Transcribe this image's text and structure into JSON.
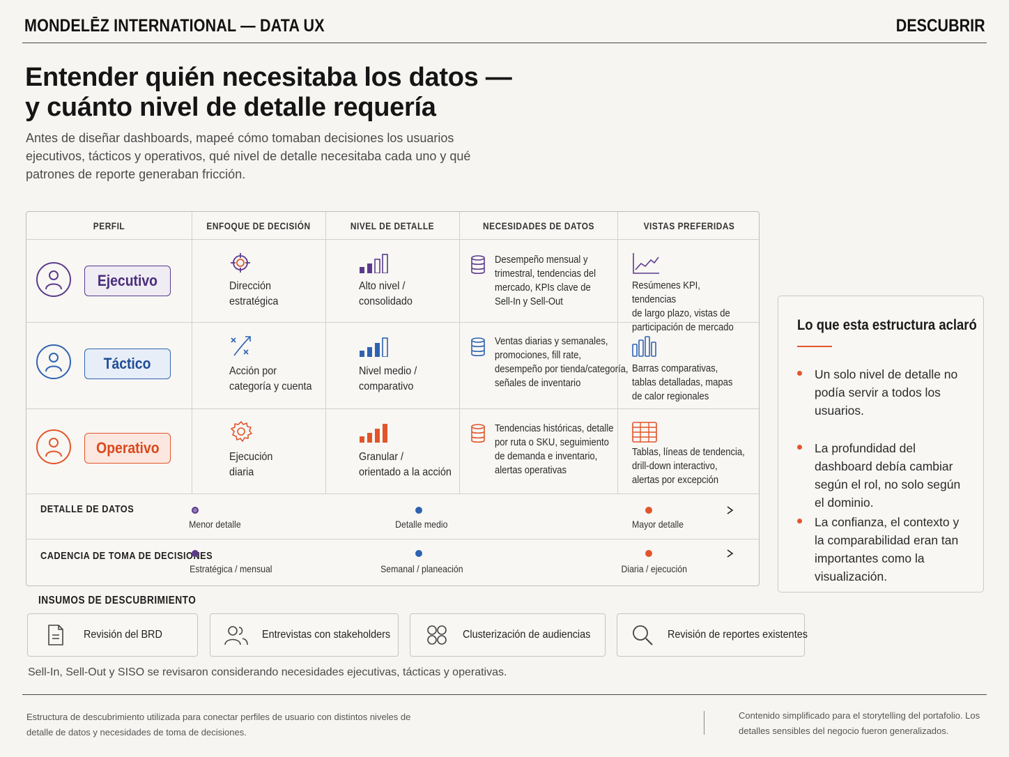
{
  "header": {
    "brand": "MONDELĒZ INTERNATIONAL — DATA UX",
    "section": "DESCUBRIR"
  },
  "title": {
    "line1": "Entender quién necesitaba los datos —",
    "line2": "y cuánto nivel de detalle requería"
  },
  "subtitle": "Antes de diseñar dashboards, mapeé cómo tomaban decisiones los usuarios ejecutivos, tácticos y operativos, qué nivel de detalle necesitaba cada uno y qué patrones de reporte generaban fricción.",
  "colors": {
    "ejecutivo": "#5b3a8c",
    "tactico": "#2f63b0",
    "operativo": "#e2552a",
    "accent": "#e2552a"
  },
  "matrix": {
    "headers": {
      "perfil": "PERFIL",
      "enfoque": "ENFOQUE DE DECISIÓN",
      "nivel": "NIVEL DE DETALLE",
      "necesidades": "NECESIDADES DE DATOS",
      "vistas": "VISTAS PREFERIDAS"
    },
    "rows": [
      {
        "role": "Ejecutivo",
        "focus_icon": "target-icon",
        "focus_1": "Dirección",
        "focus_2": "estratégica",
        "detail_icon": "bars-low-icon",
        "detail_1": "Alto nivel /",
        "detail_2": "consolidado",
        "needs_icon": "database-icon",
        "needs_1": "Desempeño mensual y",
        "needs_2": "trimestral, tendencias del",
        "needs_3": "mercado, KPIs clave de",
        "needs_4": "Sell-In y Sell-Out",
        "views_icon": "line-chart-icon",
        "views_1": "Resúmenes KPI, tendencias",
        "views_2": "de largo plazo, vistas de",
        "views_3": "participación de mercado"
      },
      {
        "role": "Táctico",
        "focus_icon": "tactics-arrow-icon",
        "focus_1": "Acción por",
        "focus_2": "categoría y cuenta",
        "detail_icon": "bars-medium-icon",
        "detail_1": "Nivel medio /",
        "detail_2": "comparativo",
        "needs_icon": "database-icon",
        "needs_1": "Ventas diarias y semanales,",
        "needs_2": "promociones, fill rate,",
        "needs_3": "desempeño por tienda/categoría,",
        "needs_4": "señales de inventario",
        "views_icon": "bar-chart-icon",
        "views_1": "Barras comparativas,",
        "views_2": "tablas detalladas, mapas",
        "views_3": "de calor regionales"
      },
      {
        "role": "Operativo",
        "focus_icon": "gear-icon",
        "focus_1": "Ejecución",
        "focus_2": "diaria",
        "detail_icon": "bars-high-icon",
        "detail_1": "Granular /",
        "detail_2": "orientado a la acción",
        "needs_icon": "database-icon",
        "needs_1": "Tendencias históricas, detalle",
        "needs_2": "por ruta o SKU, seguimiento",
        "needs_3": "de demanda e inventario,",
        "needs_4": "alertas operativas",
        "views_icon": "table-icon",
        "views_1": "Tablas, líneas de tendencia,",
        "views_2": "drill-down interactivo,",
        "views_3": "alertas por excepción"
      }
    ],
    "scales": [
      {
        "label": "DETALLE DE DATOS",
        "ticks": [
          "Menor detalle",
          "Detalle medio",
          "Mayor detalle"
        ]
      },
      {
        "label": "CADENCIA DE TOMA DE DECISIONES",
        "ticks": [
          "Estratégica / mensual",
          "Semanal / planeación",
          "Diaria / ejecución"
        ]
      }
    ]
  },
  "insights": {
    "title": "Lo que esta estructura aclaró",
    "items": [
      "Un solo nivel de detalle no podía servir a todos los usuarios.",
      "La profundidad del dashboard debía cambiar según el rol, no solo según el dominio.",
      "La confianza, el contexto y la comparabilidad eran tan importantes como la visualización."
    ]
  },
  "inputs": {
    "title": "INSUMOS DE DESCUBRIMIENTO",
    "cards": [
      {
        "icon": "document-icon",
        "label": "Revisión del BRD"
      },
      {
        "icon": "users-icon",
        "label": "Entrevistas con stakeholders"
      },
      {
        "icon": "clusters-icon",
        "label": "Clusterización de audiencias"
      },
      {
        "icon": "search-icon",
        "label": "Revisión de reportes existentes"
      }
    ],
    "note": "Sell-In, Sell-Out y SISO se revisaron considerando necesidades ejecutivas, tácticas y operativas."
  },
  "footer": {
    "left": "Estructura de descubrimiento utilizada para conectar perfiles de usuario con distintos niveles de detalle de datos y necesidades de toma de decisiones.",
    "right": "Contenido simplificado para el storytelling del portafolio. Los detalles sensibles del negocio fueron generalizados."
  }
}
